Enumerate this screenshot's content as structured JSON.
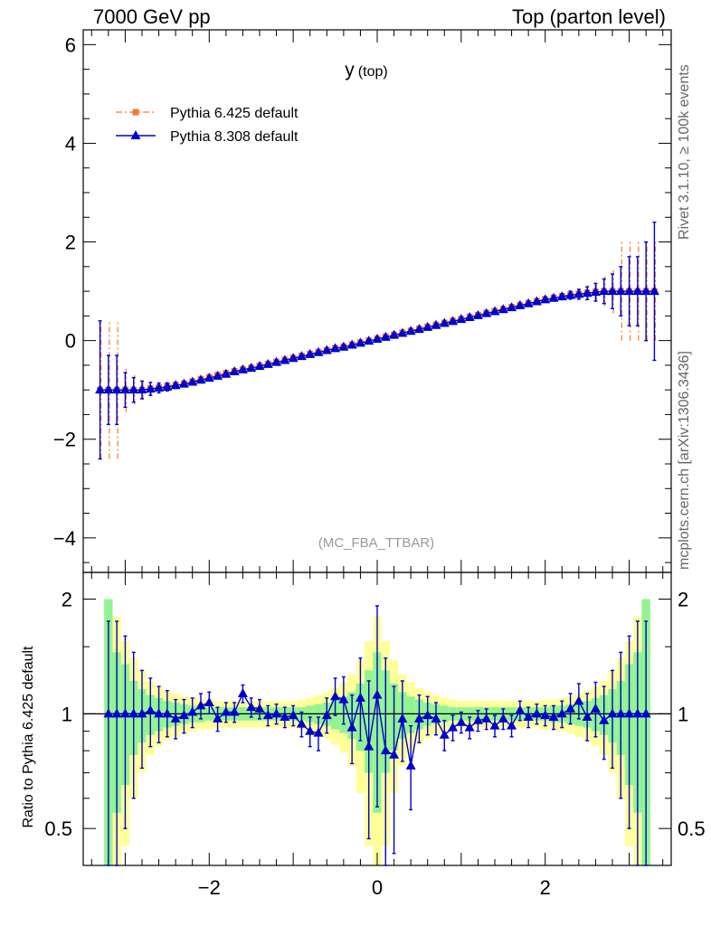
{
  "header": {
    "left": "7000 GeV pp",
    "right": "Top (parton level)"
  },
  "side_labels": {
    "rivet": "Rivet 3.1.10, ≥ 100k events",
    "site": "mcplots.cern.ch [arXiv:1306.3436]"
  },
  "colors": {
    "pythia6": "#f07c2c",
    "pythia8": "#0000cc",
    "band_inner": "#91f391",
    "band_outer": "#ffff99"
  },
  "chart_data": [
    {
      "type": "line",
      "title": "y",
      "title_sub": "(top)",
      "watermark": "(MC_FBA_TTBAR)",
      "xlabel": "",
      "ylabel": "",
      "xlim": [
        -3.5,
        3.5
      ],
      "ylim": [
        -4.7,
        6.3
      ],
      "yticks": [
        -4,
        -2,
        0,
        2,
        4,
        6
      ],
      "ytick_labels": [
        "−4",
        "−2",
        "0",
        "2",
        "4",
        "6"
      ],
      "xticks": [
        -2,
        0,
        2
      ],
      "legend_position": "top-left",
      "x": [
        -3.3,
        -3.2,
        -3.1,
        -3.0,
        -2.9,
        -2.8,
        -2.7,
        -2.6,
        -2.5,
        -2.4,
        -2.3,
        -2.2,
        -2.1,
        -2.0,
        -1.9,
        -1.8,
        -1.7,
        -1.6,
        -1.5,
        -1.4,
        -1.3,
        -1.2,
        -1.1,
        -1.0,
        -0.9,
        -0.8,
        -0.7,
        -0.6,
        -0.5,
        -0.4,
        -0.3,
        -0.2,
        -0.1,
        0.0,
        0.1,
        0.2,
        0.3,
        0.4,
        0.5,
        0.6,
        0.7,
        0.8,
        0.9,
        1.0,
        1.1,
        1.2,
        1.3,
        1.4,
        1.5,
        1.6,
        1.7,
        1.8,
        1.9,
        2.0,
        2.1,
        2.2,
        2.3,
        2.4,
        2.5,
        2.6,
        2.7,
        2.8,
        2.9,
        3.0,
        3.1,
        3.2,
        3.3
      ],
      "series": [
        {
          "name": "Pythia 6.425 default",
          "style": "dash-dot orange, square markers",
          "values": [
            -1.0,
            -1.0,
            -1.0,
            -1.0,
            -1.0,
            -1.0,
            -0.97,
            -0.95,
            -0.92,
            -0.9,
            -0.87,
            -0.83,
            -0.78,
            -0.74,
            -0.7,
            -0.66,
            -0.62,
            -0.58,
            -0.55,
            -0.51,
            -0.47,
            -0.43,
            -0.39,
            -0.35,
            -0.31,
            -0.27,
            -0.23,
            -0.19,
            -0.15,
            -0.12,
            -0.08,
            -0.04,
            0.0,
            0.04,
            0.08,
            0.12,
            0.16,
            0.2,
            0.24,
            0.28,
            0.32,
            0.36,
            0.4,
            0.44,
            0.48,
            0.52,
            0.56,
            0.6,
            0.64,
            0.68,
            0.72,
            0.76,
            0.8,
            0.84,
            0.87,
            0.9,
            0.93,
            0.95,
            0.97,
            0.99,
            1.0,
            1.0,
            1.0,
            1.0,
            1.0,
            1.0,
            1.0
          ],
          "errors": [
            1.4,
            1.4,
            1.4,
            0.45,
            0.3,
            0.2,
            0.15,
            0.1,
            0.08,
            0.06,
            0.05,
            0.04,
            0.03,
            0.03,
            0.03,
            0.03,
            0.03,
            0.03,
            0.03,
            0.03,
            0.03,
            0.03,
            0.03,
            0.03,
            0.03,
            0.03,
            0.03,
            0.03,
            0.03,
            0.03,
            0.03,
            0.03,
            0.03,
            0.03,
            0.03,
            0.03,
            0.03,
            0.03,
            0.03,
            0.03,
            0.03,
            0.03,
            0.03,
            0.03,
            0.03,
            0.03,
            0.03,
            0.03,
            0.03,
            0.03,
            0.03,
            0.03,
            0.03,
            0.04,
            0.05,
            0.06,
            0.08,
            0.1,
            0.15,
            0.2,
            0.3,
            0.45,
            1.0,
            1.0,
            1.0,
            1.0,
            1.0
          ]
        },
        {
          "name": "Pythia 8.308 default",
          "style": "solid blue, triangle markers",
          "values": [
            -1.0,
            -1.0,
            -1.0,
            -1.0,
            -1.0,
            -1.0,
            -0.98,
            -0.96,
            -0.94,
            -0.91,
            -0.88,
            -0.84,
            -0.8,
            -0.76,
            -0.72,
            -0.68,
            -0.63,
            -0.59,
            -0.56,
            -0.52,
            -0.48,
            -0.44,
            -0.4,
            -0.36,
            -0.32,
            -0.28,
            -0.24,
            -0.2,
            -0.16,
            -0.13,
            -0.09,
            -0.05,
            -0.01,
            0.03,
            0.07,
            0.11,
            0.15,
            0.19,
            0.23,
            0.27,
            0.31,
            0.35,
            0.39,
            0.43,
            0.47,
            0.51,
            0.55,
            0.59,
            0.63,
            0.67,
            0.71,
            0.75,
            0.79,
            0.83,
            0.86,
            0.89,
            0.92,
            0.94,
            0.96,
            0.98,
            1.0,
            1.0,
            1.0,
            1.0,
            1.0,
            1.0,
            1.0
          ],
          "errors": [
            1.4,
            0.7,
            0.7,
            0.35,
            0.25,
            0.18,
            0.13,
            0.1,
            0.08,
            0.06,
            0.05,
            0.04,
            0.03,
            0.03,
            0.03,
            0.03,
            0.03,
            0.03,
            0.03,
            0.03,
            0.03,
            0.03,
            0.03,
            0.03,
            0.03,
            0.03,
            0.03,
            0.03,
            0.03,
            0.03,
            0.03,
            0.03,
            0.03,
            0.03,
            0.03,
            0.03,
            0.03,
            0.03,
            0.03,
            0.03,
            0.03,
            0.03,
            0.03,
            0.03,
            0.03,
            0.03,
            0.03,
            0.03,
            0.03,
            0.03,
            0.03,
            0.03,
            0.03,
            0.04,
            0.05,
            0.06,
            0.08,
            0.1,
            0.13,
            0.18,
            0.25,
            0.35,
            0.5,
            0.7,
            0.7,
            1.0,
            1.4
          ]
        }
      ]
    },
    {
      "type": "line",
      "title": "",
      "xlabel": "",
      "ylabel": "Ratio to Pythia 6.425 default",
      "log_y": true,
      "xlim": [
        -3.5,
        3.5
      ],
      "ylim": [
        0.4,
        2.35
      ],
      "yticks": [
        0.5,
        1,
        2
      ],
      "ytick_labels": [
        "0.5",
        "1",
        "2"
      ],
      "xticks": [
        -2,
        0,
        2
      ],
      "xtick_labels": [
        "−2",
        "0",
        "2"
      ],
      "bands_x": [
        -3.2,
        -3.1,
        -3.0,
        -2.9,
        -2.8,
        -2.7,
        -2.6,
        -2.5,
        -2.4,
        -2.3,
        -2.2,
        -2.1,
        -2.0,
        -1.9,
        -1.8,
        -1.7,
        -1.6,
        -1.5,
        -1.4,
        -1.3,
        -1.2,
        -1.1,
        -1.0,
        -0.9,
        -0.8,
        -0.7,
        -0.6,
        -0.5,
        -0.4,
        -0.3,
        -0.2,
        -0.1,
        0.0,
        0.1,
        0.2,
        0.3,
        0.4,
        0.5,
        0.6,
        0.7,
        0.8,
        0.9,
        1.0,
        1.1,
        1.2,
        1.3,
        1.4,
        1.5,
        1.6,
        1.7,
        1.8,
        1.9,
        2.0,
        2.1,
        2.2,
        2.3,
        2.4,
        2.5,
        2.6,
        2.7,
        2.8,
        2.9,
        3.0,
        3.1,
        3.2
      ],
      "band_inner_halfwidth": [
        1.0,
        0.45,
        0.35,
        0.22,
        0.16,
        0.12,
        0.1,
        0.08,
        0.07,
        0.06,
        0.05,
        0.05,
        0.04,
        0.04,
        0.04,
        0.04,
        0.04,
        0.04,
        0.04,
        0.04,
        0.04,
        0.04,
        0.04,
        0.04,
        0.05,
        0.06,
        0.07,
        0.09,
        0.11,
        0.14,
        0.2,
        0.3,
        0.45,
        0.3,
        0.2,
        0.14,
        0.11,
        0.09,
        0.07,
        0.06,
        0.05,
        0.04,
        0.04,
        0.04,
        0.04,
        0.04,
        0.04,
        0.04,
        0.04,
        0.04,
        0.04,
        0.04,
        0.04,
        0.05,
        0.05,
        0.06,
        0.07,
        0.08,
        0.1,
        0.12,
        0.16,
        0.22,
        0.35,
        0.45,
        1.0
      ],
      "band_outer_halfwidth": [
        1.0,
        0.8,
        0.55,
        0.4,
        0.3,
        0.22,
        0.18,
        0.15,
        0.13,
        0.11,
        0.1,
        0.09,
        0.09,
        0.08,
        0.08,
        0.08,
        0.08,
        0.08,
        0.08,
        0.08,
        0.08,
        0.08,
        0.08,
        0.09,
        0.1,
        0.12,
        0.14,
        0.17,
        0.21,
        0.27,
        0.38,
        0.55,
        0.8,
        0.55,
        0.38,
        0.27,
        0.21,
        0.17,
        0.14,
        0.12,
        0.1,
        0.09,
        0.08,
        0.08,
        0.08,
        0.08,
        0.08,
        0.08,
        0.08,
        0.08,
        0.08,
        0.08,
        0.09,
        0.09,
        0.1,
        0.11,
        0.13,
        0.15,
        0.18,
        0.22,
        0.3,
        0.4,
        0.55,
        0.8,
        1.0
      ],
      "series": [
        {
          "name": "Pythia 8.308 default",
          "x": [
            -3.2,
            -3.1,
            -3.0,
            -2.9,
            -2.8,
            -2.7,
            -2.6,
            -2.5,
            -2.4,
            -2.3,
            -2.2,
            -2.1,
            -2.0,
            -1.9,
            -1.8,
            -1.7,
            -1.6,
            -1.5,
            -1.4,
            -1.3,
            -1.2,
            -1.1,
            -1.0,
            -0.9,
            -0.8,
            -0.7,
            -0.6,
            -0.5,
            -0.4,
            -0.3,
            -0.2,
            -0.1,
            0.0,
            0.1,
            0.2,
            0.3,
            0.4,
            0.5,
            0.6,
            0.7,
            0.8,
            0.9,
            1.0,
            1.1,
            1.2,
            1.3,
            1.4,
            1.5,
            1.6,
            1.7,
            1.8,
            1.9,
            2.0,
            2.1,
            2.2,
            2.3,
            2.4,
            2.5,
            2.6,
            2.7,
            2.8,
            2.9,
            3.0,
            3.1,
            3.2
          ],
          "values": [
            1.0,
            1.0,
            1.0,
            1.0,
            1.0,
            1.02,
            1.0,
            1.0,
            0.97,
            0.99,
            1.01,
            1.05,
            1.07,
            0.97,
            1.01,
            1.01,
            1.13,
            1.04,
            1.03,
            0.99,
            1.0,
            0.98,
            0.99,
            0.94,
            0.9,
            0.89,
            0.99,
            1.11,
            1.09,
            0.92,
            1.1,
            0.82,
            1.12,
            0.8,
            0.78,
            0.97,
            0.73,
            0.97,
            0.99,
            0.97,
            0.88,
            0.92,
            0.95,
            0.92,
            0.96,
            0.97,
            0.93,
            0.97,
            0.93,
            1.02,
            0.98,
            1.0,
            0.99,
            0.98,
            1.0,
            1.03,
            1.08,
            0.98,
            1.03,
            0.96,
            1.0,
            1.0,
            1.0,
            1.0,
            1.0
          ],
          "err_up": [
            0.75,
            0.75,
            0.6,
            0.45,
            0.3,
            0.22,
            0.18,
            0.15,
            0.12,
            0.1,
            0.09,
            0.08,
            0.07,
            0.07,
            0.06,
            0.06,
            0.06,
            0.06,
            0.06,
            0.06,
            0.06,
            0.06,
            0.06,
            0.07,
            0.08,
            0.09,
            0.11,
            0.13,
            0.16,
            0.2,
            0.3,
            0.4,
            0.8,
            0.6,
            0.4,
            0.25,
            0.2,
            0.15,
            0.12,
            0.1,
            0.08,
            0.07,
            0.06,
            0.06,
            0.06,
            0.06,
            0.06,
            0.06,
            0.06,
            0.06,
            0.06,
            0.06,
            0.06,
            0.07,
            0.08,
            0.1,
            0.12,
            0.15,
            0.18,
            0.22,
            0.3,
            0.45,
            0.6,
            0.75,
            0.75
          ],
          "err_down": [
            0.6,
            0.6,
            0.5,
            0.4,
            0.28,
            0.2,
            0.16,
            0.13,
            0.11,
            0.1,
            0.09,
            0.08,
            0.07,
            0.07,
            0.06,
            0.06,
            0.06,
            0.06,
            0.06,
            0.06,
            0.06,
            0.06,
            0.06,
            0.07,
            0.08,
            0.09,
            0.1,
            0.12,
            0.15,
            0.18,
            0.25,
            0.35,
            0.55,
            0.45,
            0.35,
            0.22,
            0.17,
            0.13,
            0.11,
            0.09,
            0.08,
            0.07,
            0.06,
            0.06,
            0.06,
            0.06,
            0.06,
            0.06,
            0.06,
            0.06,
            0.06,
            0.06,
            0.06,
            0.07,
            0.08,
            0.09,
            0.11,
            0.13,
            0.16,
            0.2,
            0.28,
            0.4,
            0.5,
            0.6,
            0.6
          ]
        }
      ]
    }
  ]
}
